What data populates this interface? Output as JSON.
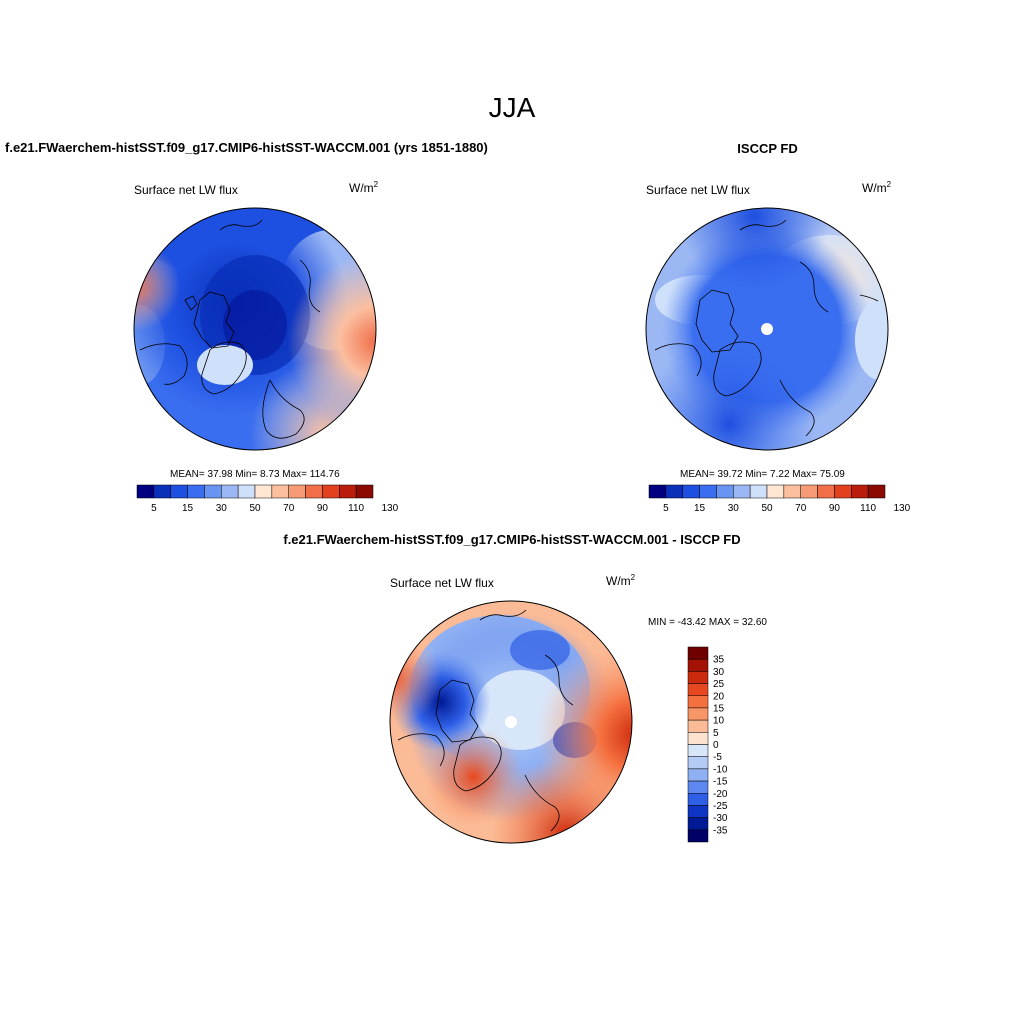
{
  "figure": {
    "season": "JJA"
  },
  "panels": [
    {
      "title": "f.e21.FWaerchem-histSST.f09_g17.CMIP6-histSST-WACCM.001 (yrs 1851-1880)",
      "variable": "Surface net LW flux",
      "units": "W/m",
      "units_exp": "2",
      "stats": "MEAN=  37.98  Min=   8.73  Max= 114.76"
    },
    {
      "title": "ISCCP FD",
      "variable": "Surface net LW flux",
      "units": "W/m",
      "units_exp": "2",
      "stats": "MEAN=  39.72  Min=   7.22  Max=  75.09"
    },
    {
      "title": "f.e21.FWaerchem-histSST.f09_g17.CMIP6-histSST-WACCM.001 - ISCCP FD",
      "variable": "Surface net LW flux",
      "units": "W/m",
      "units_exp": "2",
      "stats": "MIN = -43.42 MAX =  32.60"
    }
  ],
  "chart_data": [
    {
      "type": "heatmap",
      "projection": "north-polar-stereographic",
      "colorbar": {
        "orientation": "horizontal",
        "tick_labels": [
          "5",
          "15",
          "30",
          "50",
          "70",
          "90",
          "110",
          "130"
        ],
        "colors": [
          "#000080",
          "#0a2fb8",
          "#1d4fe0",
          "#3a6ef0",
          "#6a94f2",
          "#9cb8f4",
          "#cfe0fa",
          "#fde6d2",
          "#fbbfa0",
          "#f79a76",
          "#f06f4a",
          "#e2401f",
          "#b81e0b",
          "#8a0a02"
        ]
      },
      "mean": 37.98,
      "min": 8.73,
      "max": 114.76
    },
    {
      "type": "heatmap",
      "projection": "north-polar-stereographic",
      "colorbar": {
        "orientation": "horizontal",
        "tick_labels": [
          "5",
          "15",
          "30",
          "50",
          "70",
          "90",
          "110",
          "130"
        ],
        "colors": [
          "#000080",
          "#0a2fb8",
          "#1d4fe0",
          "#3a6ef0",
          "#6a94f2",
          "#9cb8f4",
          "#cfe0fa",
          "#fde6d2",
          "#fbbfa0",
          "#f79a76",
          "#f06f4a",
          "#e2401f",
          "#b81e0b",
          "#8a0a02"
        ]
      },
      "mean": 39.72,
      "min": 7.22,
      "max": 75.09
    },
    {
      "type": "heatmap",
      "projection": "north-polar-stereographic",
      "colorbar": {
        "orientation": "vertical",
        "tick_labels": [
          "35",
          "30",
          "25",
          "20",
          "15",
          "10",
          "5",
          "0",
          "-5",
          "-10",
          "-15",
          "-20",
          "-25",
          "-30",
          "-35"
        ],
        "colors": [
          "#6e0000",
          "#a31205",
          "#cc2a0c",
          "#e8481f",
          "#f5703f",
          "#f89668",
          "#fbbb96",
          "#fde3cf",
          "#d8e6fa",
          "#b4cbf6",
          "#8fb0f3",
          "#5d88ef",
          "#2f5fe6",
          "#0f35c4",
          "#001a96",
          "#000066"
        ]
      },
      "min": -43.42,
      "max": 32.6
    }
  ]
}
